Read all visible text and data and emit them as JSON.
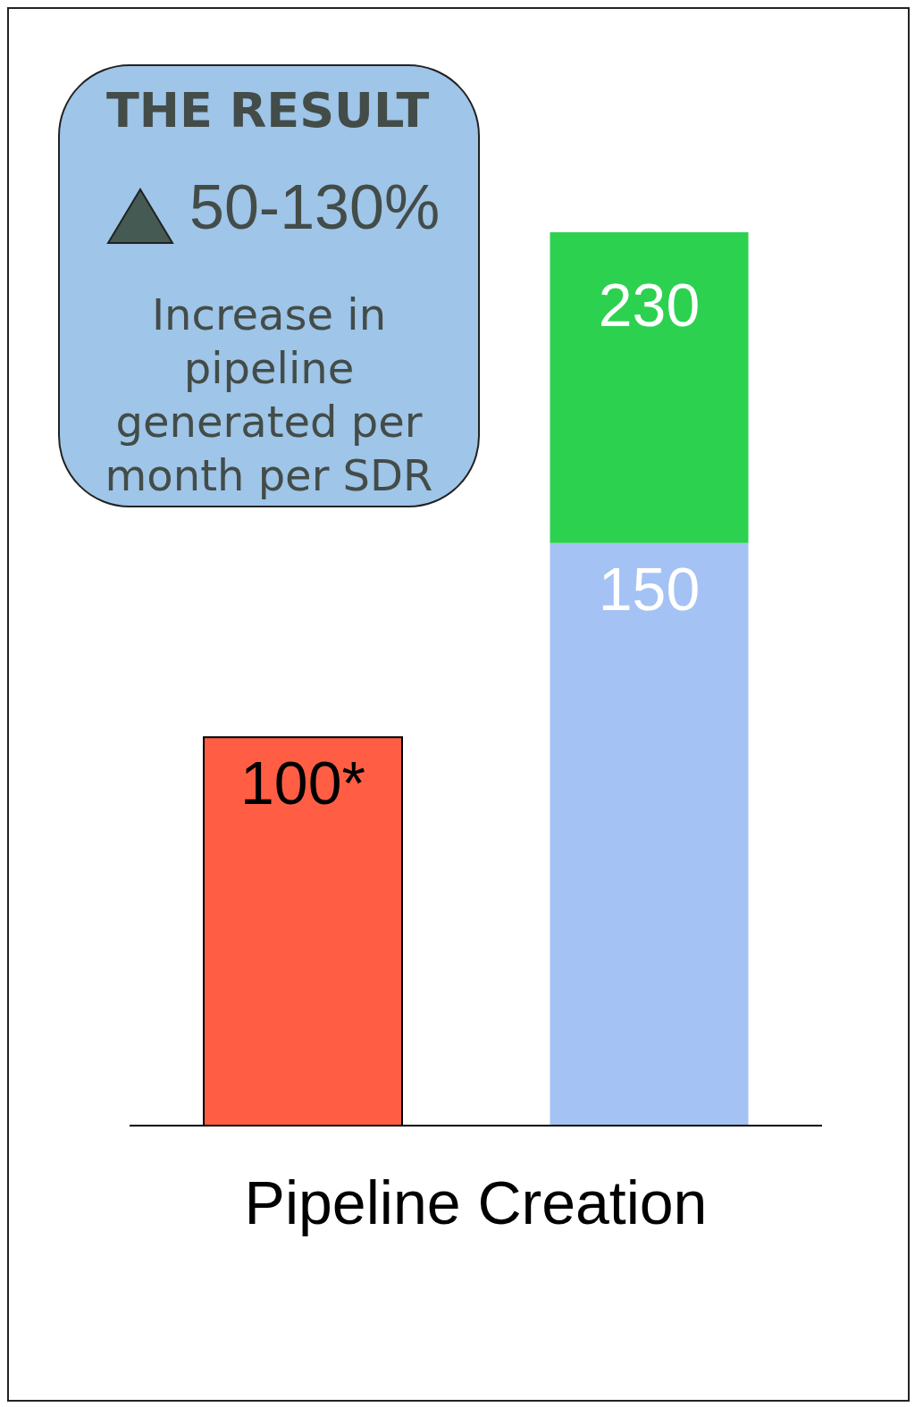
{
  "chart_data": {
    "type": "bar",
    "xlabel": "Pipeline Creation",
    "categories": [
      null,
      null
    ],
    "stacked": true,
    "series": [
      {
        "color": "#ff5e45",
        "values": [
          100,
          null
        ],
        "value_labels": [
          "100*",
          null
        ]
      },
      {
        "color": "#a4c2f4",
        "values": [
          null,
          150
        ],
        "value_labels": [
          null,
          "150"
        ]
      },
      {
        "color": "#2dd150",
        "values": [
          null,
          80
        ],
        "value_labels": [
          null,
          null
        ]
      }
    ],
    "totals": [
      null,
      "230"
    ],
    "annotations": [
      "THE RESULT",
      "50-130%",
      "Increase in pipeline generated per month per SDR"
    ],
    "legend": false,
    "grid": false
  }
}
